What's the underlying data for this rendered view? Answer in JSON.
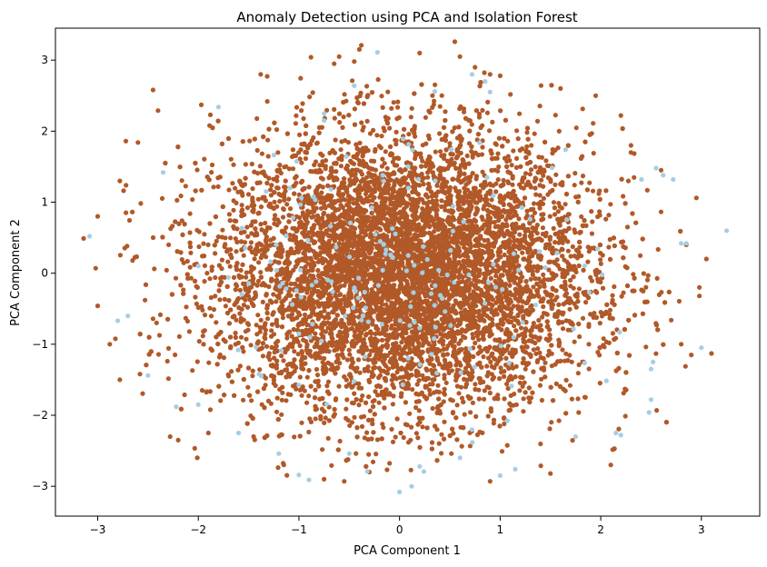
{
  "chart_data": {
    "type": "scatter",
    "title": "Anomaly Detection using PCA and Isolation Forest",
    "xlabel": "PCA Component 1",
    "ylabel": "PCA Component 2",
    "xlim": [
      -3.42,
      3.58
    ],
    "ylim": [
      -3.42,
      3.45
    ],
    "xticks": [
      -3,
      -2,
      -1,
      0,
      1,
      2,
      3
    ],
    "yticks": [
      -3,
      -2,
      -1,
      0,
      1,
      2,
      3
    ],
    "xtick_labels": [
      "−3",
      "−2",
      "−1",
      "0",
      "1",
      "2",
      "3"
    ],
    "ytick_labels": [
      "−3",
      "−2",
      "−1",
      "0",
      "1",
      "2",
      "3"
    ],
    "grid": false,
    "legend": false,
    "colors": {
      "normal": "#b15928",
      "anomaly": "#a6cee3"
    },
    "cloud": {
      "count": 9000,
      "center": [
        0.05,
        0.0
      ],
      "spread": [
        0.92,
        0.97
      ]
    },
    "series": [
      {
        "kind": "normal",
        "color": "#b15928",
        "points": [
          [
            -3.14,
            0.49
          ],
          [
            -3.0,
            0.8
          ],
          [
            -3.02,
            0.07
          ],
          [
            -3.0,
            -0.46
          ],
          [
            -2.88,
            -1.0
          ],
          [
            -2.78,
            1.3
          ],
          [
            -2.72,
            1.86
          ],
          [
            -2.78,
            -1.5
          ],
          [
            -2.6,
            1.84
          ],
          [
            -2.4,
            2.29
          ],
          [
            -2.45,
            2.58
          ],
          [
            -2.2,
            -2.35
          ],
          [
            -1.97,
            2.37
          ],
          [
            -1.38,
            2.8
          ],
          [
            -0.88,
            3.04
          ],
          [
            -0.65,
            2.95
          ],
          [
            -0.6,
            3.05
          ],
          [
            -0.45,
            2.98
          ],
          [
            -0.4,
            3.15
          ],
          [
            -0.38,
            3.21
          ],
          [
            0.2,
            3.1
          ],
          [
            0.55,
            3.26
          ],
          [
            0.6,
            3.05
          ],
          [
            0.75,
            2.9
          ],
          [
            0.9,
            2.8
          ],
          [
            1.0,
            2.78
          ],
          [
            1.6,
            2.6
          ],
          [
            1.95,
            2.5
          ],
          [
            2.2,
            2.22
          ],
          [
            2.3,
            1.8
          ],
          [
            2.3,
            1.7
          ],
          [
            2.6,
            1.45
          ],
          [
            2.95,
            1.06
          ],
          [
            2.85,
            0.4
          ],
          [
            3.05,
            0.2
          ],
          [
            2.98,
            -0.2
          ],
          [
            2.98,
            -0.32
          ],
          [
            2.7,
            -0.66
          ],
          [
            2.8,
            -1.0
          ],
          [
            3.1,
            -1.13
          ],
          [
            2.9,
            -1.15
          ],
          [
            2.1,
            -2.7
          ],
          [
            1.5,
            -2.82
          ],
          [
            0.9,
            -2.93
          ],
          [
            -0.55,
            -2.93
          ],
          [
            -0.75,
            -2.9
          ],
          [
            -0.3,
            -2.8
          ],
          [
            -1.15,
            -2.7
          ],
          [
            -1.45,
            -2.3
          ],
          [
            -2.28,
            -2.3
          ],
          [
            -1.9,
            -2.25
          ],
          [
            -2.58,
            -1.42
          ]
        ]
      },
      {
        "kind": "anomaly",
        "color": "#a6cee3",
        "points": [
          [
            -3.08,
            0.52
          ],
          [
            -2.8,
            -0.67
          ],
          [
            -2.5,
            -1.44
          ],
          [
            -2.35,
            1.42
          ],
          [
            -2.0,
            -1.85
          ],
          [
            -1.8,
            2.34
          ],
          [
            -1.2,
            -2.54
          ],
          [
            -1.0,
            -2.84
          ],
          [
            -0.9,
            -2.91
          ],
          [
            -0.75,
            2.15
          ],
          [
            -0.5,
            -2.54
          ],
          [
            -0.32,
            -2.79
          ],
          [
            -0.22,
            3.11
          ],
          [
            0.0,
            -3.08
          ],
          [
            0.12,
            -3.0
          ],
          [
            0.2,
            -2.72
          ],
          [
            0.35,
            2.56
          ],
          [
            0.6,
            -2.6
          ],
          [
            0.72,
            2.8
          ],
          [
            0.85,
            2.7
          ],
          [
            1.0,
            -2.85
          ],
          [
            1.15,
            -2.76
          ],
          [
            1.65,
            1.74
          ],
          [
            1.75,
            -2.3
          ],
          [
            2.15,
            -2.25
          ],
          [
            2.48,
            -1.96
          ],
          [
            2.5,
            -1.78
          ],
          [
            2.52,
            -1.25
          ],
          [
            2.55,
            1.48
          ],
          [
            2.62,
            1.38
          ],
          [
            2.72,
            1.32
          ],
          [
            2.8,
            0.42
          ],
          [
            2.85,
            0.42
          ],
          [
            3.0,
            -1.05
          ],
          [
            3.25,
            0.6
          ],
          [
            2.5,
            -1.35
          ],
          [
            -1.6,
            -2.25
          ],
          [
            -0.45,
            2.64
          ],
          [
            0.9,
            2.55
          ],
          [
            -2.22,
            -1.88
          ],
          [
            -2.7,
            -0.6
          ],
          [
            2.2,
            -2.28
          ]
        ]
      }
    ]
  }
}
